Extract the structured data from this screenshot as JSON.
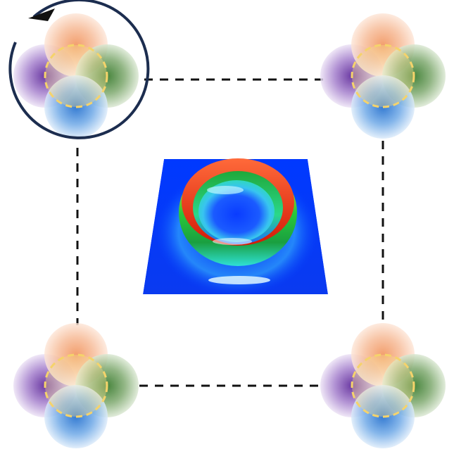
{
  "diagram": {
    "colors": {
      "orange": "#f4a574",
      "green": "#2e7d1f",
      "purple": "#5a1f9a",
      "blue": "#1a6fd4",
      "dashed_circle": "#f5d36b",
      "rotation_arrow": "#1c2d4f",
      "connector": "#111111",
      "surface_base": "#0033ff",
      "ring_red": "#e03010",
      "ring_green": "#1fbf3a",
      "ring_cyan": "#43e8e0"
    },
    "clusters": [
      {
        "id": "top-left",
        "lobes": [
          "orange",
          "green",
          "blue",
          "purple"
        ],
        "rotation_marker": true
      },
      {
        "id": "top-right",
        "lobes": [
          "orange",
          "green",
          "blue",
          "purple"
        ],
        "rotation_marker": false
      },
      {
        "id": "bottom-left",
        "lobes": [
          "orange",
          "green",
          "blue",
          "purple"
        ],
        "rotation_marker": false
      },
      {
        "id": "bottom-right",
        "lobes": [
          "orange",
          "green",
          "blue",
          "purple"
        ],
        "rotation_marker": false
      }
    ],
    "connector_style": "dashed",
    "center_plot_icon": "ring-surface-icon",
    "rotation_icon": "counterclockwise-arrow-icon"
  }
}
